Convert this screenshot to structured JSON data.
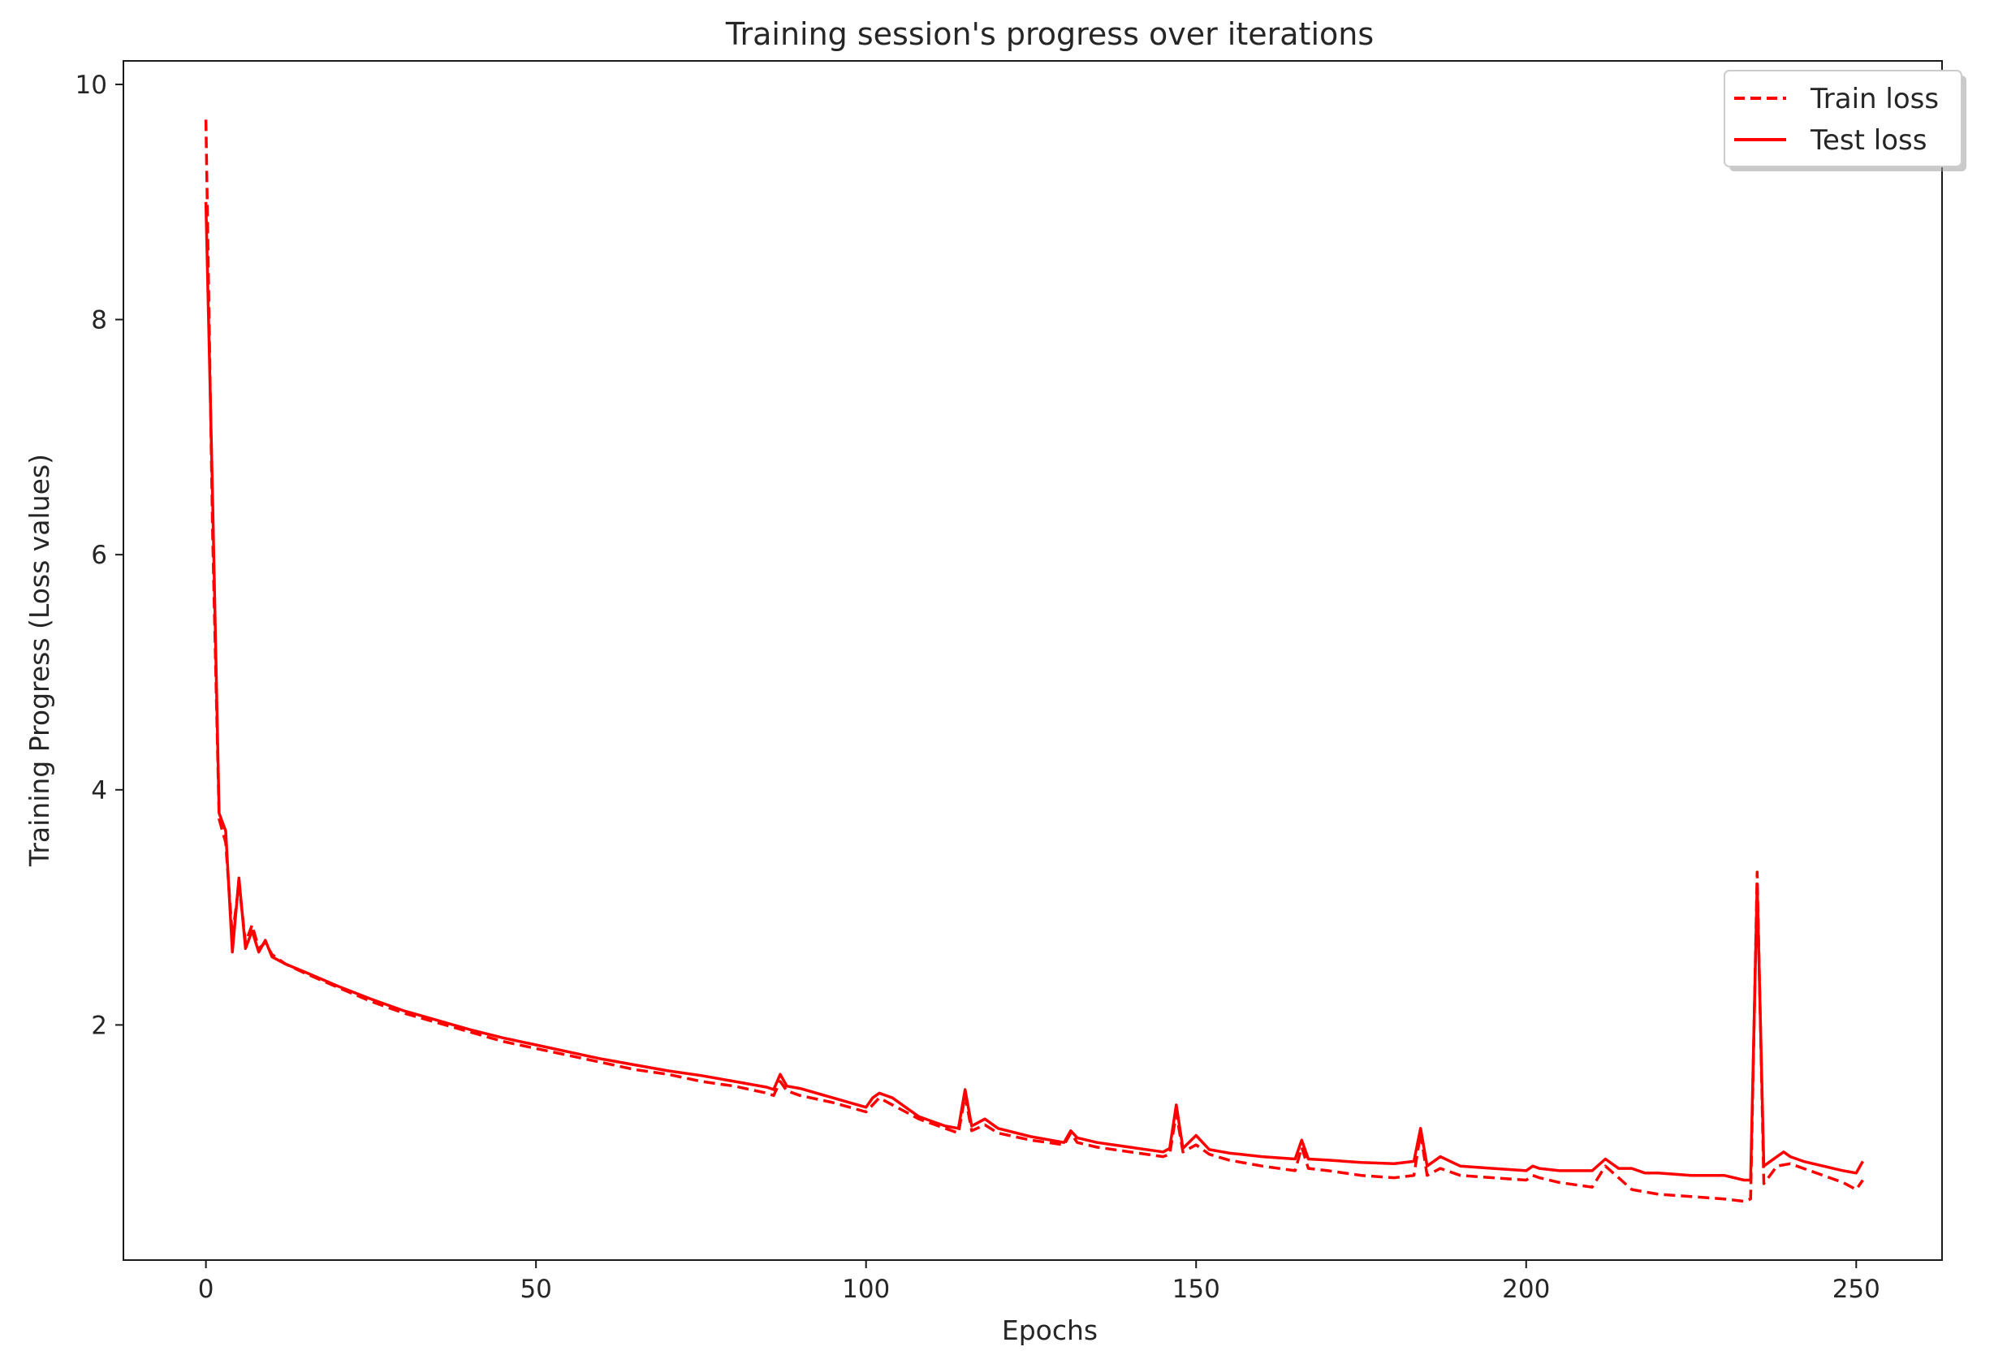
{
  "chart_data": {
    "type": "line",
    "title": "Training session's progress over iterations",
    "xlabel": "Epochs",
    "ylabel": "Training Progress (Loss values)",
    "xlim": [
      -12.5,
      263
    ],
    "ylim": [
      0.0,
      10.2
    ],
    "xticks": [
      0,
      50,
      100,
      150,
      200,
      250
    ],
    "yticks": [
      2,
      4,
      6,
      8,
      10
    ],
    "grid": false,
    "legend_position": "top-right",
    "line_color": "#ff0000",
    "series": [
      {
        "name": "Train loss",
        "style": "dashed",
        "points": [
          [
            0,
            9.7
          ],
          [
            1,
            6.2
          ],
          [
            2,
            3.75
          ],
          [
            3,
            3.55
          ],
          [
            4,
            2.75
          ],
          [
            5,
            3.2
          ],
          [
            6,
            2.7
          ],
          [
            7,
            2.85
          ],
          [
            8,
            2.65
          ],
          [
            9,
            2.7
          ],
          [
            10,
            2.6
          ],
          [
            12,
            2.52
          ],
          [
            15,
            2.44
          ],
          [
            20,
            2.32
          ],
          [
            25,
            2.2
          ],
          [
            30,
            2.1
          ],
          [
            35,
            2.02
          ],
          [
            40,
            1.94
          ],
          [
            45,
            1.86
          ],
          [
            50,
            1.8
          ],
          [
            55,
            1.74
          ],
          [
            60,
            1.68
          ],
          [
            65,
            1.62
          ],
          [
            70,
            1.58
          ],
          [
            75,
            1.52
          ],
          [
            80,
            1.48
          ],
          [
            85,
            1.42
          ],
          [
            86,
            1.4
          ],
          [
            87,
            1.52
          ],
          [
            88,
            1.44
          ],
          [
            90,
            1.4
          ],
          [
            95,
            1.34
          ],
          [
            100,
            1.26
          ],
          [
            102,
            1.38
          ],
          [
            104,
            1.32
          ],
          [
            106,
            1.26
          ],
          [
            108,
            1.2
          ],
          [
            110,
            1.16
          ],
          [
            112,
            1.12
          ],
          [
            114,
            1.08
          ],
          [
            115,
            1.4
          ],
          [
            116,
            1.1
          ],
          [
            118,
            1.15
          ],
          [
            120,
            1.08
          ],
          [
            125,
            1.02
          ],
          [
            130,
            0.98
          ],
          [
            131,
            1.08
          ],
          [
            132,
            1.0
          ],
          [
            135,
            0.96
          ],
          [
            140,
            0.92
          ],
          [
            145,
            0.88
          ],
          [
            146,
            0.9
          ],
          [
            147,
            1.25
          ],
          [
            148,
            0.92
          ],
          [
            150,
            0.98
          ],
          [
            152,
            0.9
          ],
          [
            155,
            0.85
          ],
          [
            160,
            0.8
          ],
          [
            165,
            0.76
          ],
          [
            166,
            0.96
          ],
          [
            167,
            0.78
          ],
          [
            170,
            0.76
          ],
          [
            175,
            0.72
          ],
          [
            180,
            0.7
          ],
          [
            183,
            0.72
          ],
          [
            184,
            1.08
          ],
          [
            185,
            0.72
          ],
          [
            187,
            0.78
          ],
          [
            190,
            0.72
          ],
          [
            195,
            0.7
          ],
          [
            200,
            0.68
          ],
          [
            201,
            0.72
          ],
          [
            202,
            0.7
          ],
          [
            205,
            0.66
          ],
          [
            210,
            0.62
          ],
          [
            212,
            0.8
          ],
          [
            214,
            0.7
          ],
          [
            216,
            0.6
          ],
          [
            218,
            0.58
          ],
          [
            220,
            0.56
          ],
          [
            225,
            0.54
          ],
          [
            230,
            0.52
          ],
          [
            233,
            0.5
          ],
          [
            234,
            0.52
          ],
          [
            235,
            3.3
          ],
          [
            236,
            0.65
          ],
          [
            238,
            0.8
          ],
          [
            240,
            0.82
          ],
          [
            242,
            0.78
          ],
          [
            245,
            0.72
          ],
          [
            248,
            0.66
          ],
          [
            250,
            0.6
          ],
          [
            251,
            0.68
          ]
        ]
      },
      {
        "name": "Test loss",
        "style": "solid",
        "points": [
          [
            0,
            9.0
          ],
          [
            1,
            6.5
          ],
          [
            2,
            3.8
          ],
          [
            3,
            3.65
          ],
          [
            4,
            2.62
          ],
          [
            5,
            3.25
          ],
          [
            6,
            2.65
          ],
          [
            7,
            2.8
          ],
          [
            8,
            2.62
          ],
          [
            9,
            2.72
          ],
          [
            10,
            2.58
          ],
          [
            12,
            2.52
          ],
          [
            15,
            2.45
          ],
          [
            20,
            2.33
          ],
          [
            25,
            2.22
          ],
          [
            30,
            2.12
          ],
          [
            35,
            2.04
          ],
          [
            40,
            1.96
          ],
          [
            45,
            1.89
          ],
          [
            50,
            1.83
          ],
          [
            55,
            1.77
          ],
          [
            60,
            1.71
          ],
          [
            65,
            1.66
          ],
          [
            70,
            1.61
          ],
          [
            75,
            1.57
          ],
          [
            80,
            1.52
          ],
          [
            85,
            1.47
          ],
          [
            86,
            1.45
          ],
          [
            87,
            1.58
          ],
          [
            88,
            1.48
          ],
          [
            90,
            1.46
          ],
          [
            95,
            1.38
          ],
          [
            100,
            1.3
          ],
          [
            101,
            1.38
          ],
          [
            102,
            1.42
          ],
          [
            104,
            1.38
          ],
          [
            106,
            1.3
          ],
          [
            108,
            1.22
          ],
          [
            110,
            1.18
          ],
          [
            112,
            1.14
          ],
          [
            114,
            1.12
          ],
          [
            115,
            1.45
          ],
          [
            116,
            1.14
          ],
          [
            118,
            1.2
          ],
          [
            120,
            1.12
          ],
          [
            125,
            1.05
          ],
          [
            130,
            1.0
          ],
          [
            131,
            1.1
          ],
          [
            132,
            1.04
          ],
          [
            135,
            1.0
          ],
          [
            140,
            0.96
          ],
          [
            145,
            0.92
          ],
          [
            146,
            0.95
          ],
          [
            147,
            1.32
          ],
          [
            148,
            0.95
          ],
          [
            150,
            1.06
          ],
          [
            152,
            0.94
          ],
          [
            155,
            0.91
          ],
          [
            160,
            0.88
          ],
          [
            165,
            0.86
          ],
          [
            166,
            1.02
          ],
          [
            167,
            0.86
          ],
          [
            170,
            0.85
          ],
          [
            175,
            0.83
          ],
          [
            180,
            0.82
          ],
          [
            183,
            0.84
          ],
          [
            184,
            1.12
          ],
          [
            185,
            0.8
          ],
          [
            187,
            0.88
          ],
          [
            190,
            0.8
          ],
          [
            195,
            0.78
          ],
          [
            200,
            0.76
          ],
          [
            201,
            0.8
          ],
          [
            202,
            0.78
          ],
          [
            205,
            0.76
          ],
          [
            210,
            0.76
          ],
          [
            212,
            0.86
          ],
          [
            214,
            0.78
          ],
          [
            216,
            0.78
          ],
          [
            218,
            0.74
          ],
          [
            220,
            0.74
          ],
          [
            225,
            0.72
          ],
          [
            230,
            0.72
          ],
          [
            233,
            0.68
          ],
          [
            234,
            0.68
          ],
          [
            235,
            3.2
          ],
          [
            236,
            0.8
          ],
          [
            238,
            0.88
          ],
          [
            239,
            0.92
          ],
          [
            240,
            0.88
          ],
          [
            242,
            0.84
          ],
          [
            245,
            0.8
          ],
          [
            248,
            0.76
          ],
          [
            250,
            0.74
          ],
          [
            251,
            0.84
          ]
        ]
      }
    ]
  }
}
